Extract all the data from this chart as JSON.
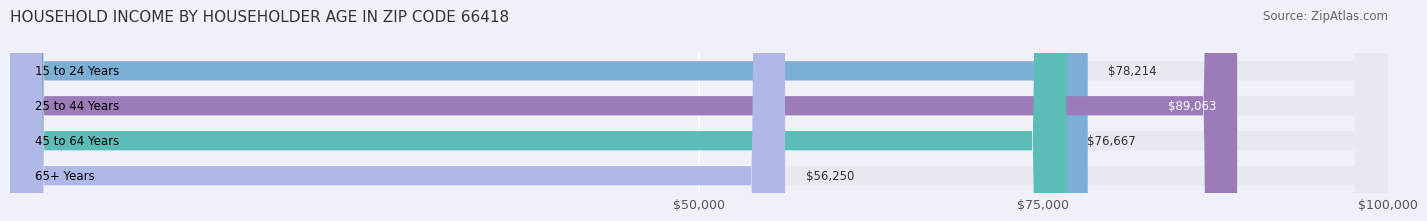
{
  "title": "HOUSEHOLD INCOME BY HOUSEHOLDER AGE IN ZIP CODE 66418",
  "source": "Source: ZipAtlas.com",
  "categories": [
    "15 to 24 Years",
    "25 to 44 Years",
    "45 to 64 Years",
    "65+ Years"
  ],
  "values": [
    78214,
    89063,
    76667,
    56250
  ],
  "labels": [
    "$78,214",
    "$89,063",
    "$76,667",
    "$56,250"
  ],
  "bar_colors": [
    "#7bafd4",
    "#9b7bb8",
    "#5bbcb8",
    "#b0b8e8"
  ],
  "label_inside": [
    false,
    true,
    false,
    false
  ],
  "bar_height": 0.55,
  "xlim": [
    0,
    100000
  ],
  "xticks": [
    50000,
    75000,
    100000
  ],
  "xtick_labels": [
    "$50,000",
    "$75,000",
    "$100,000"
  ],
  "bg_color": "#f0f0f8",
  "bar_bg_color": "#e8e8f0",
  "title_fontsize": 11,
  "source_fontsize": 8.5,
  "label_fontsize": 8.5,
  "tick_fontsize": 9,
  "cat_fontsize": 8.5
}
